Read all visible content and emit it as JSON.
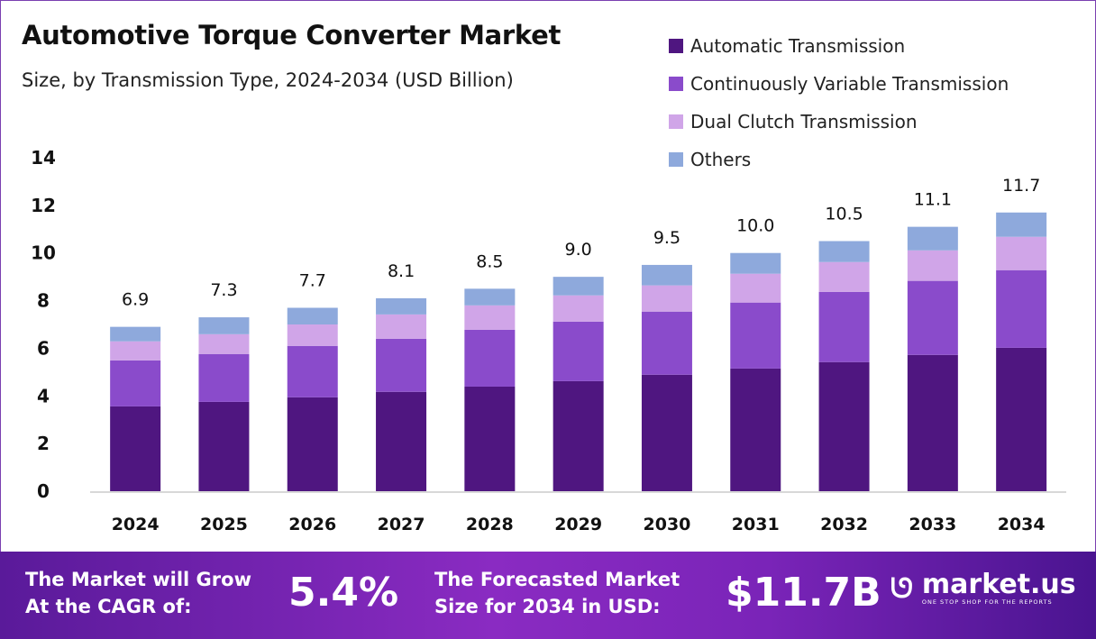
{
  "chart_data": {
    "type": "bar",
    "stacked": true,
    "title": "Automotive Torque Converter Market",
    "subtitle": "Size, by Transmission Type, 2024-2034 (USD Billion)",
    "categories": [
      "2024",
      "2025",
      "2026",
      "2027",
      "2028",
      "2029",
      "2030",
      "2031",
      "2032",
      "2033",
      "2034"
    ],
    "series": [
      {
        "name": "Automatic Transmission",
        "color": "#4f1680",
        "values": [
          3.56,
          3.75,
          3.94,
          4.17,
          4.39,
          4.62,
          4.89,
          5.15,
          5.42,
          5.72,
          6.02
        ]
      },
      {
        "name": "Continuously Variable Transmission",
        "color": "#8a4bcb",
        "values": [
          1.93,
          2.01,
          2.16,
          2.23,
          2.39,
          2.5,
          2.65,
          2.77,
          2.95,
          3.11,
          3.26
        ]
      },
      {
        "name": "Dual Clutch Transmission",
        "color": "#d0a5e8",
        "values": [
          0.8,
          0.83,
          0.9,
          1.02,
          1.02,
          1.1,
          1.1,
          1.21,
          1.25,
          1.28,
          1.4
        ]
      },
      {
        "name": "Others",
        "color": "#8ea9dc",
        "values": [
          0.61,
          0.71,
          0.7,
          0.68,
          0.7,
          0.78,
          0.86,
          0.87,
          0.88,
          0.99,
          1.02
        ]
      }
    ],
    "totals": [
      "6.9",
      "7.3",
      "7.7",
      "8.1",
      "8.5",
      "9.0",
      "9.5",
      "10.0",
      "10.5",
      "11.1",
      "11.7"
    ],
    "yticks": [
      "0",
      "2",
      "4",
      "6",
      "8",
      "10",
      "12",
      "14"
    ],
    "ylim": [
      0,
      14
    ],
    "grid": false,
    "legend": "top-right"
  },
  "footer": {
    "cagr_label_1": "The Market will Grow",
    "cagr_label_2": "At the CAGR of:",
    "cagr_value": "5.4%",
    "forecast_label_1": "The Forecasted Market",
    "forecast_label_2": "Size for 2034 in USD:",
    "forecast_value": "$11.7B",
    "logo_name": "market.us",
    "logo_tagline": "ONE STOP SHOP FOR THE REPORTS"
  }
}
